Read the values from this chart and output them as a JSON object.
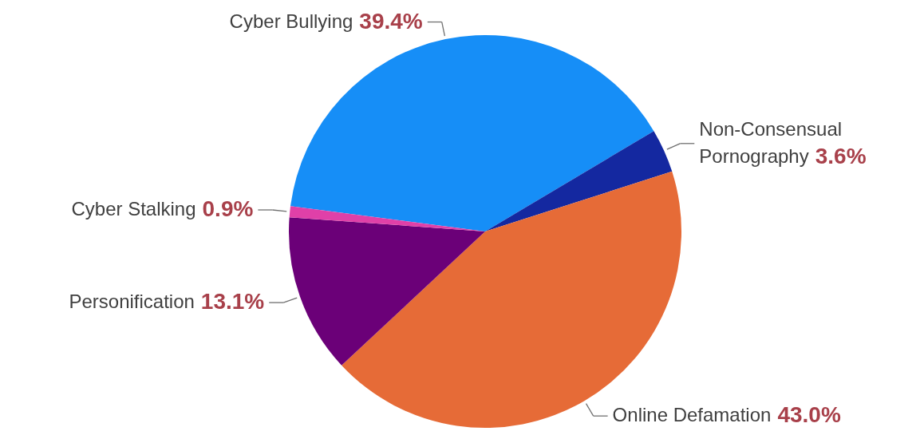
{
  "chart_data": {
    "type": "pie",
    "categories": [
      "Cyber Bullying",
      "Non-Consensual Pornography",
      "Online Defamation",
      "Personification",
      "Cyber Stalking"
    ],
    "values": [
      39.4,
      3.6,
      43.0,
      13.1,
      0.9
    ],
    "value_labels": [
      "39.4%",
      "3.6%",
      "43.0%",
      "13.1%",
      "0.9%"
    ],
    "colors": [
      "#168ef7",
      "#1428a0",
      "#e66b37",
      "#6b0078",
      "#e040a8"
    ]
  }
}
